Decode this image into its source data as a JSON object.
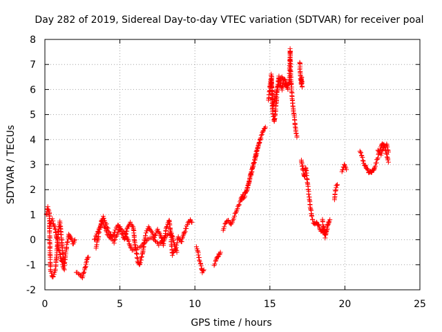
{
  "chart_data": {
    "type": "scatter",
    "title": "Day 282 of 2019, Sidereal Day-to-day VTEC variation (SDTVAR) for receiver poal",
    "xlabel": "GPS time / hours",
    "ylabel": "SDTVAR / TECUs",
    "xlim": [
      0,
      25
    ],
    "ylim": [
      -2,
      8
    ],
    "xticks": [
      "0",
      "5",
      "10",
      "15",
      "20",
      "25"
    ],
    "yticks": [
      "-2",
      "-1",
      "0",
      "1",
      "2",
      "3",
      "4",
      "5",
      "6",
      "7",
      "8"
    ],
    "grid": true,
    "marker": "plus",
    "color": "#ff0000",
    "series": [
      {
        "name": "SDTVAR",
        "segments": [
          {
            "x": [
              0.1,
              0.2,
              0.3,
              0.35,
              0.4,
              0.5,
              0.6,
              0.7,
              0.8,
              0.9,
              1.0,
              1.1,
              1.2,
              1.3,
              1.4,
              1.5,
              1.6,
              1.7,
              1.8,
              1.9,
              2.0
            ],
            "y": [
              1.0,
              1.3,
              1.1,
              -0.8,
              -1.3,
              -1.5,
              -1.4,
              -1.2,
              -0.5,
              0.3,
              0.7,
              0.1,
              -0.6,
              -1.0,
              -0.5,
              -0.1,
              0.2,
              0.1,
              0.0,
              -0.2,
              0.0
            ]
          },
          {
            "x": [
              0.3,
              0.5,
              0.7,
              0.9,
              1.1,
              1.3
            ],
            "y": [
              0.6,
              0.8,
              0.4,
              -0.3,
              -0.8,
              -1.2
            ]
          },
          {
            "x": [
              2.1,
              2.3,
              2.5,
              2.7,
              2.8,
              2.9
            ],
            "y": [
              -1.3,
              -1.4,
              -1.5,
              -1.1,
              -0.8,
              -0.7
            ]
          },
          {
            "x": [
              3.3,
              3.5,
              3.7,
              3.9,
              4.1,
              4.3,
              4.5,
              4.7,
              4.9,
              5.1,
              5.3,
              5.5,
              5.7,
              5.9,
              6.0,
              6.1,
              6.2,
              6.3,
              6.5,
              6.7,
              6.9,
              7.1,
              7.3,
              7.5,
              7.7,
              7.9,
              8.1,
              8.3,
              8.5,
              8.7,
              8.9,
              9.1,
              9.3,
              9.5,
              9.7,
              9.8
            ],
            "y": [
              0.0,
              0.3,
              0.5,
              0.9,
              0.6,
              0.3,
              0.1,
              0.4,
              0.6,
              0.3,
              0.0,
              0.5,
              0.7,
              0.5,
              -0.2,
              -0.5,
              -0.9,
              -1.0,
              -0.6,
              0.2,
              0.5,
              0.3,
              0.1,
              0.4,
              0.2,
              -0.2,
              0.5,
              0.8,
              -0.6,
              -0.4,
              0.1,
              -0.1,
              0.3,
              0.6,
              0.8,
              0.7
            ]
          },
          {
            "x": [
              3.4,
              3.8,
              4.2,
              4.6,
              5.0,
              5.4,
              5.8,
              6.4,
              6.8,
              7.2,
              7.6,
              8.0,
              8.4,
              8.8
            ],
            "y": [
              -0.3,
              0.8,
              0.2,
              -0.1,
              0.5,
              0.2,
              -0.4,
              -0.3,
              0.0,
              0.1,
              -0.2,
              0.1,
              0.3,
              -0.5
            ]
          },
          {
            "x": [
              10.1,
              10.2,
              10.3,
              10.4,
              10.5,
              10.6
            ],
            "y": [
              -0.3,
              -0.5,
              -0.8,
              -1.0,
              -1.3,
              -1.2
            ]
          },
          {
            "x": [
              11.3,
              11.4,
              11.5,
              11.6,
              11.7
            ],
            "y": [
              -1.0,
              -0.8,
              -0.7,
              -0.6,
              -0.5
            ]
          },
          {
            "x": [
              11.9,
              12.0,
              12.2,
              12.4,
              12.6,
              12.8,
              13.0,
              13.2,
              13.4,
              13.6,
              13.8,
              14.0,
              14.1,
              14.2,
              14.3,
              14.4,
              14.5,
              14.6,
              14.7
            ],
            "y": [
              0.4,
              0.6,
              0.8,
              0.6,
              0.9,
              1.2,
              1.5,
              1.8,
              1.9,
              2.3,
              2.8,
              3.2,
              3.5,
              3.7,
              3.9,
              4.1,
              4.3,
              4.4,
              4.5
            ]
          },
          {
            "x": [
              13.1,
              13.3,
              13.5,
              13.7,
              13.9,
              14.05,
              14.15,
              14.25,
              14.35
            ],
            "y": [
              1.6,
              1.7,
              2.1,
              2.5,
              3.0,
              3.3,
              3.6,
              3.8,
              4.0
            ]
          },
          {
            "x": [
              14.9,
              15.0,
              15.1,
              15.2,
              15.3,
              15.4,
              15.5,
              15.6,
              15.7,
              15.8,
              15.9,
              16.0,
              16.1,
              16.2,
              16.3,
              16.35,
              16.4,
              16.5,
              16.6,
              16.7,
              16.8
            ],
            "y": [
              5.6,
              6.0,
              6.4,
              5.0,
              4.7,
              5.3,
              6.1,
              6.5,
              6.2,
              6.0,
              6.3,
              6.2,
              6.1,
              6.2,
              6.3,
              7.6,
              6.4,
              5.6,
              5.0,
              4.5,
              4.1
            ]
          },
          {
            "x": [
              15.0,
              15.1,
              15.2,
              15.4,
              15.6,
              15.8,
              16.0,
              16.2
            ],
            "y": [
              6.1,
              6.6,
              5.3,
              5.8,
              6.3,
              6.5,
              6.4,
              6.0
            ]
          },
          {
            "x": [
              17.0,
              17.0,
              17.05,
              17.1,
              17.1,
              17.15
            ],
            "y": [
              7.1,
              6.8,
              6.4,
              6.2,
              6.5,
              6.1
            ]
          },
          {
            "x": [
              17.1,
              17.2,
              17.3,
              17.4,
              17.5,
              17.6,
              17.7,
              17.8,
              17.9,
              18.0,
              18.1,
              18.2,
              18.3,
              18.4,
              18.5,
              18.6,
              18.7,
              18.8,
              18.9,
              19.0
            ],
            "y": [
              3.2,
              2.8,
              2.5,
              2.9,
              2.3,
              1.8,
              1.3,
              0.9,
              0.7,
              0.6,
              0.7,
              0.6,
              0.5,
              0.3,
              0.4,
              0.5,
              0.2,
              0.4,
              0.6,
              0.8
            ]
          },
          {
            "x": [
              18.5,
              18.6,
              18.7,
              18.8,
              18.9
            ],
            "y": [
              0.8,
              0.3,
              0.1,
              0.5,
              0.7
            ]
          },
          {
            "x": [
              19.3,
              19.4,
              19.5
            ],
            "y": [
              1.6,
              2.1,
              2.2
            ]
          },
          {
            "x": [
              19.8,
              19.9,
              20.0,
              20.1
            ],
            "y": [
              2.7,
              2.9,
              3.0,
              2.8
            ]
          },
          {
            "x": [
              21.0,
              21.1,
              21.2,
              21.3,
              21.4,
              21.5,
              21.6,
              21.7,
              21.8,
              21.9,
              22.0,
              22.1,
              22.2,
              22.3,
              22.4,
              22.5,
              22.6,
              22.7,
              22.8,
              22.9
            ],
            "y": [
              3.5,
              3.4,
              3.2,
              3.0,
              2.9,
              2.8,
              2.7,
              2.7,
              2.7,
              2.8,
              2.9,
              3.1,
              3.3,
              3.5,
              3.7,
              3.8,
              3.8,
              3.6,
              3.4,
              3.1
            ]
          },
          {
            "x": [
              22.2,
              22.4,
              22.6,
              22.8,
              22.9
            ],
            "y": [
              3.6,
              3.4,
              3.7,
              3.8,
              3.5
            ]
          }
        ]
      }
    ]
  }
}
